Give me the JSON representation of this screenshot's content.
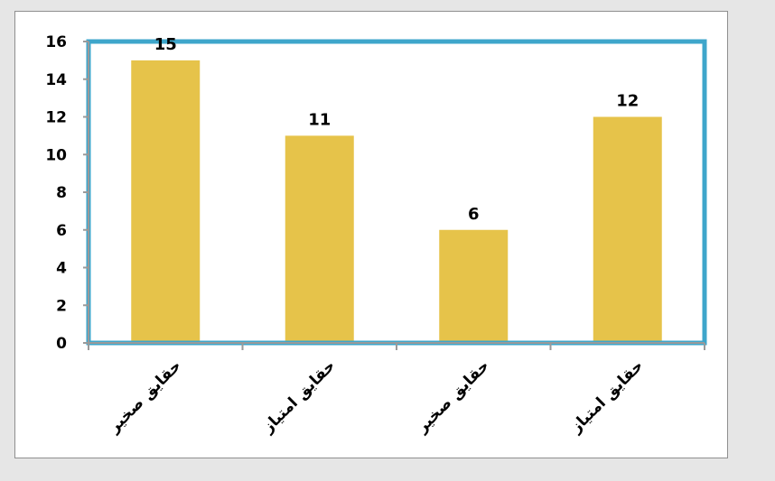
{
  "chart_data": {
    "type": "bar",
    "categories": [
      "ﺣﻘﺎﻳﻖ ﺻﺨﻴﺮ",
      "ﺣﻘﺎﻳﻖ ﺍﻣﺘﻴﺎﺯ",
      "ﺣﻘﺎﻳﻖ ﺻﺨﻴﺮ",
      "ﺣﻘﺎﻳﻖ ﺍﻣﺘﻴﺎﺯ"
    ],
    "values": [
      15,
      11,
      6,
      12
    ],
    "data_labels": [
      "15",
      "11",
      "6",
      "12"
    ],
    "title": "",
    "xlabel": "",
    "ylabel": "",
    "ylim": [
      0,
      16
    ],
    "yticks": [
      0,
      2,
      4,
      6,
      8,
      10,
      12,
      14,
      16
    ],
    "ytick_labels": [
      "0",
      "2",
      "4",
      "6",
      "8",
      "10",
      "12",
      "14",
      "16"
    ],
    "grid": false,
    "legend": "none",
    "colors": {
      "bar": "#e6c34a",
      "plot_border": "#3ea6cb",
      "axis": "#9a9a9a",
      "frame": "#8f8f8f",
      "text": "#000000"
    }
  }
}
